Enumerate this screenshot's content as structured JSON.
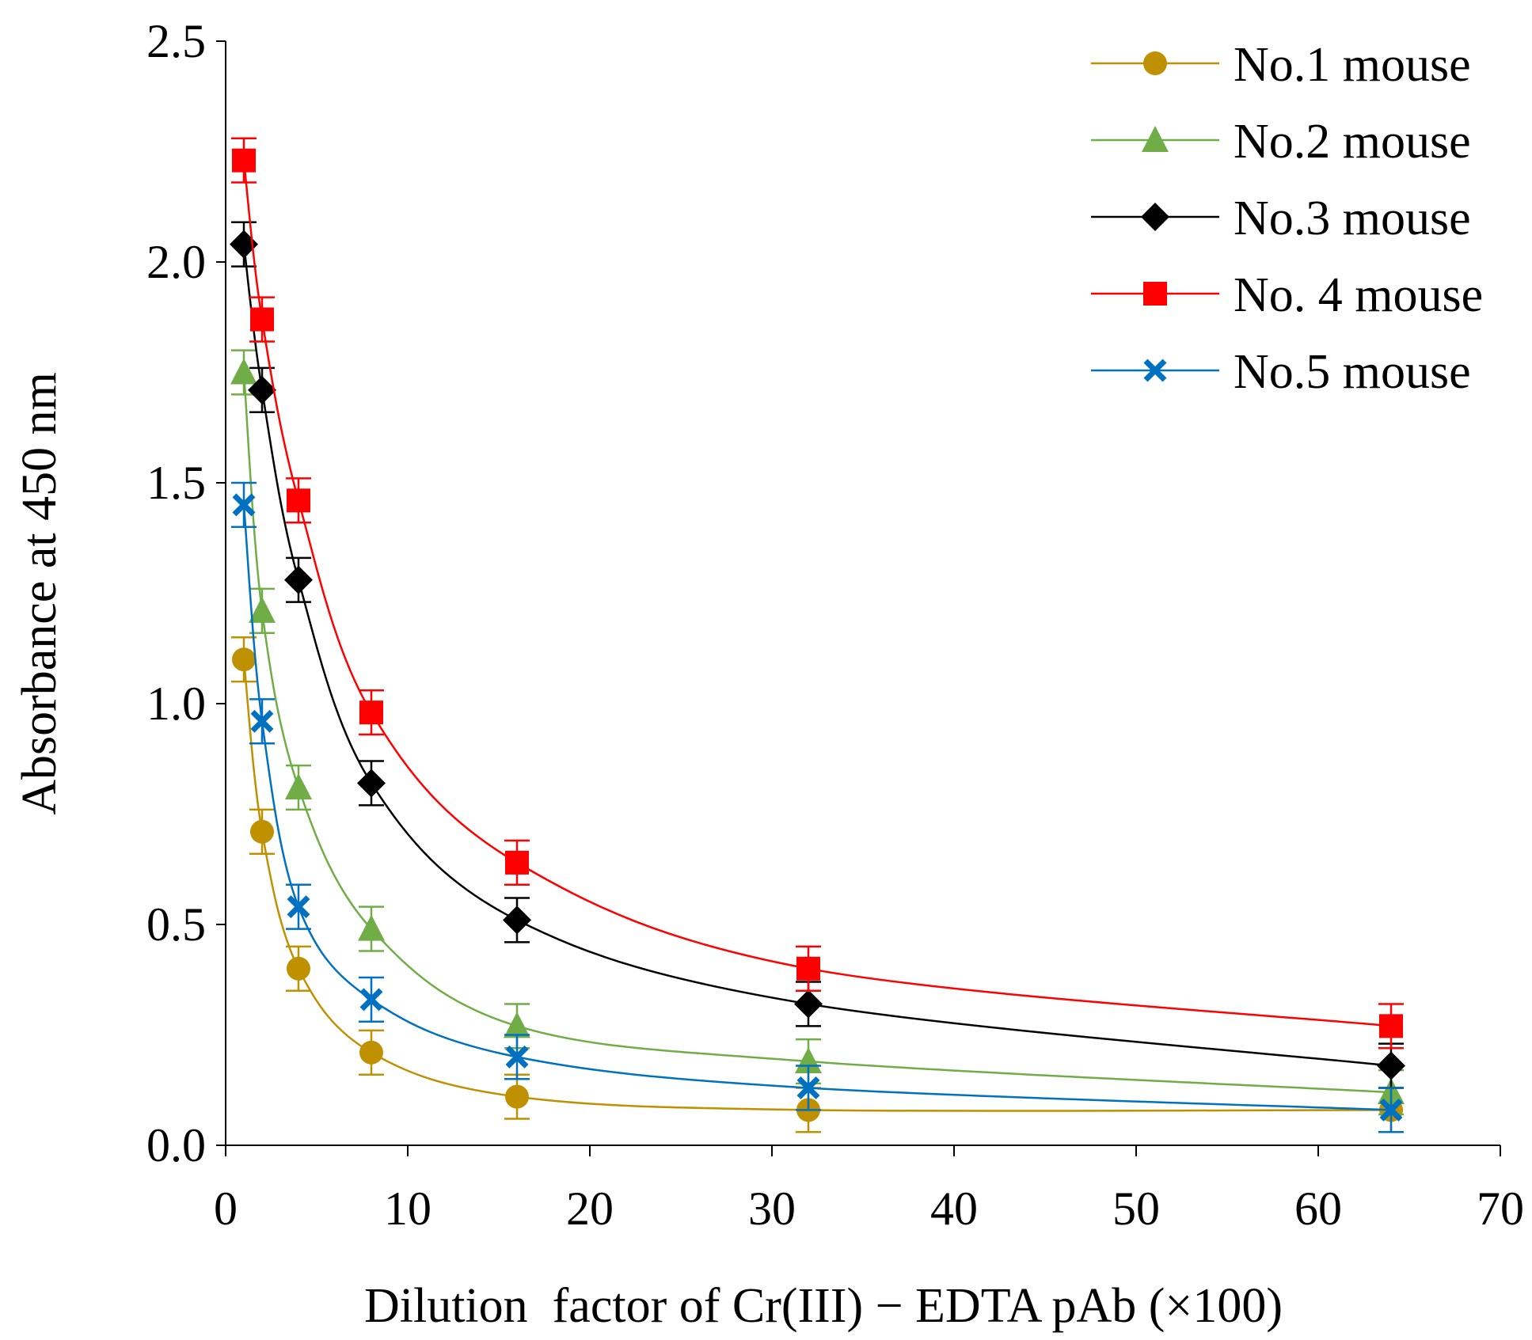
{
  "chart_data": {
    "type": "line",
    "title": "",
    "xlabel": "Dilution  factor of Cr(III) − EDTA pAb (×100)",
    "ylabel": "Absorbance at 450 nm",
    "xlim": [
      0,
      70
    ],
    "ylim": [
      0,
      2.5
    ],
    "xticks": [
      0,
      10,
      20,
      30,
      40,
      50,
      60,
      70
    ],
    "xtick_labels": [
      "0",
      "10",
      "20",
      "30",
      "40",
      "50",
      "60",
      "70"
    ],
    "yticks": [
      0,
      0.5,
      1.0,
      1.5,
      2.0,
      2.5
    ],
    "ytick_labels": [
      "0.0",
      "0.5",
      "1.0",
      "1.5",
      "2.0",
      "2.5"
    ],
    "grid": false,
    "legend_position": "top-right",
    "x": [
      1,
      2,
      4,
      8,
      16,
      32,
      64
    ],
    "series": [
      {
        "name": "No.1 mouse",
        "color": "#BF9000",
        "marker": "circle",
        "values": [
          1.1,
          0.71,
          0.4,
          0.21,
          0.11,
          0.08,
          0.08
        ],
        "errors": [
          0.05,
          0.05,
          0.05,
          0.05,
          0.05,
          0.05,
          0.05
        ]
      },
      {
        "name": "No.2 mouse",
        "color": "#70AD47",
        "marker": "triangle",
        "values": [
          1.75,
          1.21,
          0.81,
          0.49,
          0.27,
          0.19,
          0.12
        ],
        "errors": [
          0.05,
          0.05,
          0.05,
          0.05,
          0.05,
          0.05,
          0.05
        ]
      },
      {
        "name": "No.3 mouse",
        "color": "#000000",
        "marker": "diamond",
        "values": [
          2.04,
          1.71,
          1.28,
          0.82,
          0.51,
          0.32,
          0.18
        ],
        "errors": [
          0.05,
          0.05,
          0.05,
          0.05,
          0.05,
          0.05,
          0.05
        ]
      },
      {
        "name": "No. 4 mouse",
        "color": "#FF0000",
        "marker": "square",
        "values": [
          2.23,
          1.87,
          1.46,
          0.98,
          0.64,
          0.4,
          0.27
        ],
        "errors": [
          0.05,
          0.05,
          0.05,
          0.05,
          0.05,
          0.05,
          0.05
        ]
      },
      {
        "name": "No.5 mouse",
        "color": "#0070C0",
        "marker": "x",
        "values": [
          1.45,
          0.96,
          0.54,
          0.33,
          0.2,
          0.13,
          0.08
        ],
        "errors": [
          0.05,
          0.05,
          0.05,
          0.05,
          0.05,
          0.05,
          0.05
        ]
      }
    ]
  }
}
